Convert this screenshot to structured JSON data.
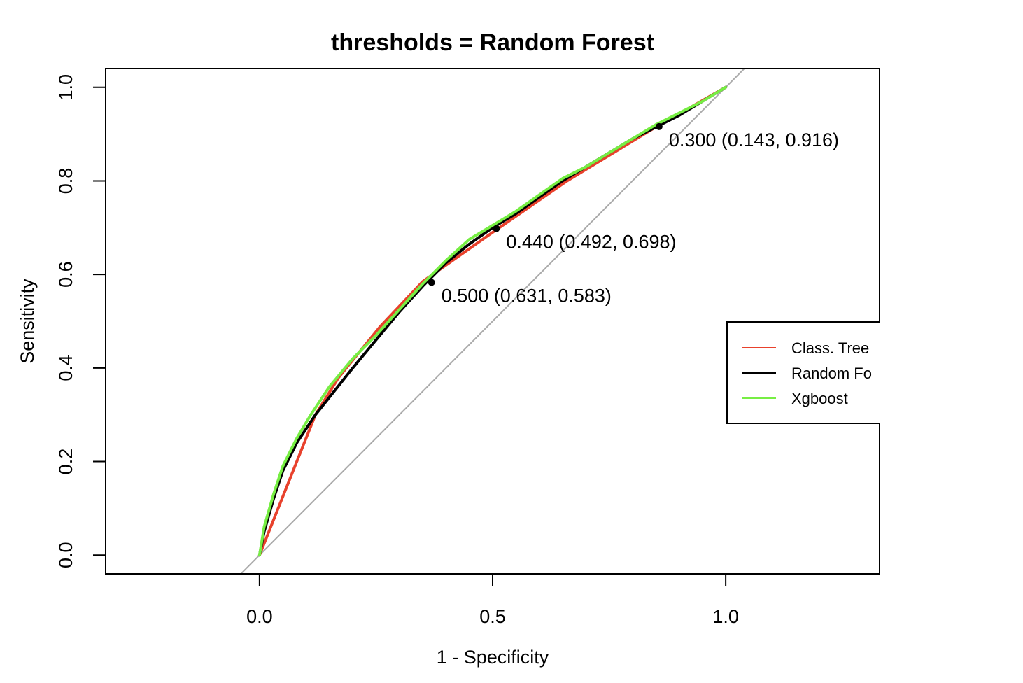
{
  "chart_data": {
    "type": "line",
    "title": "thresholds = Random Forest",
    "xlabel": "1 - Specificity",
    "ylabel": "Sensitivity",
    "xlim": [
      -0.33,
      1.33
    ],
    "ylim": [
      -0.04,
      1.04
    ],
    "x_ticks": [
      {
        "value": 0,
        "label": "0.0"
      },
      {
        "value": 0.5,
        "label": "0.5"
      },
      {
        "value": 1,
        "label": "1.0"
      }
    ],
    "y_ticks": [
      {
        "value": 0,
        "label": "0.0"
      },
      {
        "value": 0.2,
        "label": "0.2"
      },
      {
        "value": 0.4,
        "label": "0.4"
      },
      {
        "value": 0.6,
        "label": "0.6"
      },
      {
        "value": 0.8,
        "label": "0.8"
      },
      {
        "value": 1,
        "label": "1.0"
      }
    ],
    "grid": false,
    "diagonal": {
      "color": "#aaaaaa"
    },
    "series": [
      {
        "name": "Class. Tree",
        "color": "#e8412c",
        "points": [
          [
            0,
            0
          ],
          [
            0.12,
            0.3
          ],
          [
            0.17,
            0.38
          ],
          [
            0.26,
            0.49
          ],
          [
            0.35,
            0.585
          ],
          [
            0.5,
            0.69
          ],
          [
            0.66,
            0.8
          ],
          [
            0.85,
            0.915
          ],
          [
            1.0,
            1.0
          ]
        ]
      },
      {
        "name": "Random Forest",
        "color": "#000000",
        "points": [
          [
            0,
            0
          ],
          [
            0.01,
            0.05
          ],
          [
            0.03,
            0.12
          ],
          [
            0.05,
            0.18
          ],
          [
            0.08,
            0.24
          ],
          [
            0.12,
            0.3
          ],
          [
            0.16,
            0.35
          ],
          [
            0.2,
            0.4
          ],
          [
            0.25,
            0.46
          ],
          [
            0.3,
            0.52
          ],
          [
            0.35,
            0.575
          ],
          [
            0.4,
            0.625
          ],
          [
            0.45,
            0.665
          ],
          [
            0.5,
            0.7
          ],
          [
            0.55,
            0.73
          ],
          [
            0.6,
            0.765
          ],
          [
            0.65,
            0.8
          ],
          [
            0.7,
            0.83
          ],
          [
            0.75,
            0.86
          ],
          [
            0.8,
            0.89
          ],
          [
            0.85,
            0.915
          ],
          [
            0.9,
            0.94
          ],
          [
            0.95,
            0.97
          ],
          [
            1.0,
            1.0
          ]
        ]
      },
      {
        "name": "Xgboost",
        "color": "#77ee44",
        "points": [
          [
            0,
            0
          ],
          [
            0.01,
            0.06
          ],
          [
            0.03,
            0.13
          ],
          [
            0.05,
            0.19
          ],
          [
            0.08,
            0.25
          ],
          [
            0.11,
            0.3
          ],
          [
            0.15,
            0.36
          ],
          [
            0.2,
            0.42
          ],
          [
            0.25,
            0.47
          ],
          [
            0.3,
            0.525
          ],
          [
            0.35,
            0.58
          ],
          [
            0.4,
            0.63
          ],
          [
            0.45,
            0.675
          ],
          [
            0.5,
            0.705
          ],
          [
            0.55,
            0.735
          ],
          [
            0.6,
            0.77
          ],
          [
            0.65,
            0.805
          ],
          [
            0.7,
            0.83
          ],
          [
            0.75,
            0.86
          ],
          [
            0.8,
            0.89
          ],
          [
            0.85,
            0.92
          ],
          [
            0.9,
            0.945
          ],
          [
            0.95,
            0.97
          ],
          [
            1.0,
            1.0
          ]
        ]
      }
    ],
    "threshold_points": [
      {
        "x": 0.857,
        "y": 0.916,
        "label": "0.300 (0.143, 0.916)"
      },
      {
        "x": 0.508,
        "y": 0.698,
        "label": "0.440 (0.492, 0.698)"
      },
      {
        "x": 0.369,
        "y": 0.583,
        "label": "0.500 (0.631, 0.583)"
      }
    ],
    "legend": {
      "placement": "right, clipped at plot edge",
      "entries": [
        "Class. Tree",
        "Random Fo",
        "Xgboost"
      ]
    }
  }
}
